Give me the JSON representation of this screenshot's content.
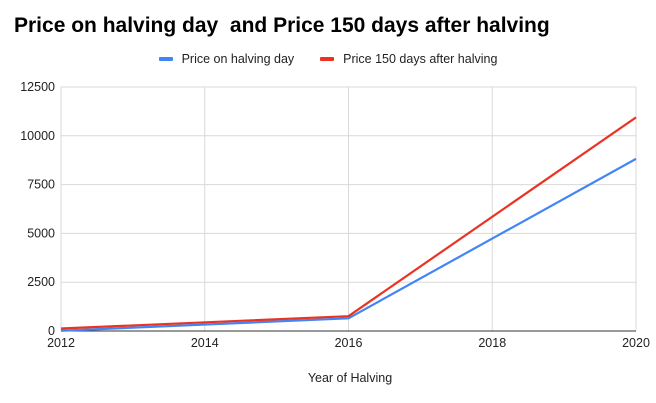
{
  "chart": {
    "title": "Price on halving day  and Price 150 days after halving",
    "xlabel": "Year of Halving",
    "legend": [
      {
        "label": "Price on halving day",
        "color": "#4285f4"
      },
      {
        "label": "Price 150 days after halving",
        "color": "#ea3323"
      }
    ]
  },
  "chart_data": {
    "type": "line",
    "title": "Price on halving day  and Price 150 days after halving",
    "xlabel": "Year of Halving",
    "ylabel": "",
    "x": [
      2012,
      2016,
      2020
    ],
    "series": [
      {
        "name": "Price on halving day",
        "color": "#4285f4",
        "values": [
          12,
          650,
          8821
        ]
      },
      {
        "name": "Price 150 days after halving",
        "color": "#ea3323",
        "values": [
          127,
          760,
          10943
        ]
      }
    ],
    "xlim": [
      2012,
      2020
    ],
    "ylim": [
      0,
      12500
    ],
    "xticks": [
      "2012",
      "2014",
      "2016",
      "2018",
      "2020"
    ],
    "yticks": [
      "0",
      "2500",
      "5000",
      "7500",
      "10000",
      "12500"
    ],
    "grid": true,
    "legend_position": "top"
  }
}
